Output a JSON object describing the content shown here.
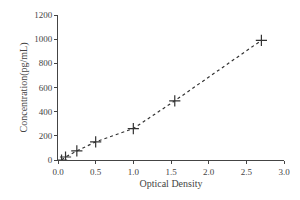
{
  "chart_data": {
    "type": "line",
    "x": [
      0.047,
      0.1,
      0.25,
      0.5,
      1.0,
      1.55,
      2.7
    ],
    "values": [
      0,
      25,
      75,
      150,
      260,
      490,
      990
    ],
    "xlabel": "Optical Density",
    "ylabel": "Concentration(pg/mL)",
    "xlim": [
      0,
      3
    ],
    "ylim": [
      0,
      1200
    ],
    "xticks": [
      {
        "value": 0,
        "label": "0.0"
      },
      0.5,
      {
        "value": 1,
        "label": "1.0"
      },
      1.5,
      {
        "value": 2,
        "label": "2.0"
      },
      2.5,
      {
        "value": 3,
        "label": "3.0"
      }
    ],
    "yticks": [
      0,
      200,
      400,
      600,
      800,
      1000,
      1200
    ],
    "color": "#333333",
    "marker": "plus",
    "line_style": "dotted",
    "grid": false
  }
}
